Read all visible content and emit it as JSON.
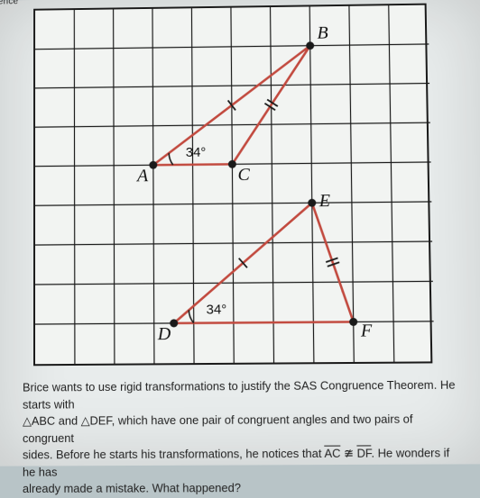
{
  "header_scrap_left": "ence",
  "grid": {
    "cols": 10,
    "rows": 9,
    "cell": 44,
    "grid_color": "#1a1a1a",
    "grid_stroke": 1.2,
    "bg": "#f2f4f2"
  },
  "triangles": {
    "stroke": "#c24a3f",
    "stroke_width": 2.6,
    "tick_color": "#1a1a1a",
    "point_fill": "#1a1a1a",
    "ABC": {
      "A": [
        3,
        4
      ],
      "B": [
        7,
        1
      ],
      "C": [
        5,
        4
      ]
    },
    "DEF": {
      "D": [
        3.5,
        8
      ],
      "E": [
        7,
        5
      ],
      "F": [
        8,
        8
      ]
    }
  },
  "angle_labels": {
    "A_value": "34°",
    "D_value": "34°",
    "font_size": 15
  },
  "vertex_labels": {
    "A": "A",
    "B": "B",
    "C": "C",
    "D": "D",
    "E": "E",
    "F": "F",
    "font_size": 20,
    "font_style": "italic",
    "color": "#111"
  },
  "problem": {
    "line1_a": "Brice wants to use rigid transformations to justify the SAS Congruence Theorem. He starts with",
    "tri1": "△ABC",
    "and": " and ",
    "tri2": "△DEF",
    "line2_a": ", which have one pair of congruent angles and two pairs of congruent",
    "line3_a": "sides. Before he starts his transformations, he notices that ",
    "seg1": "AC",
    "ncong": " ≇ ",
    "seg2": "DF",
    "line3_b": ". He wonders if he has",
    "line4": "already made a mistake. What happened?"
  }
}
